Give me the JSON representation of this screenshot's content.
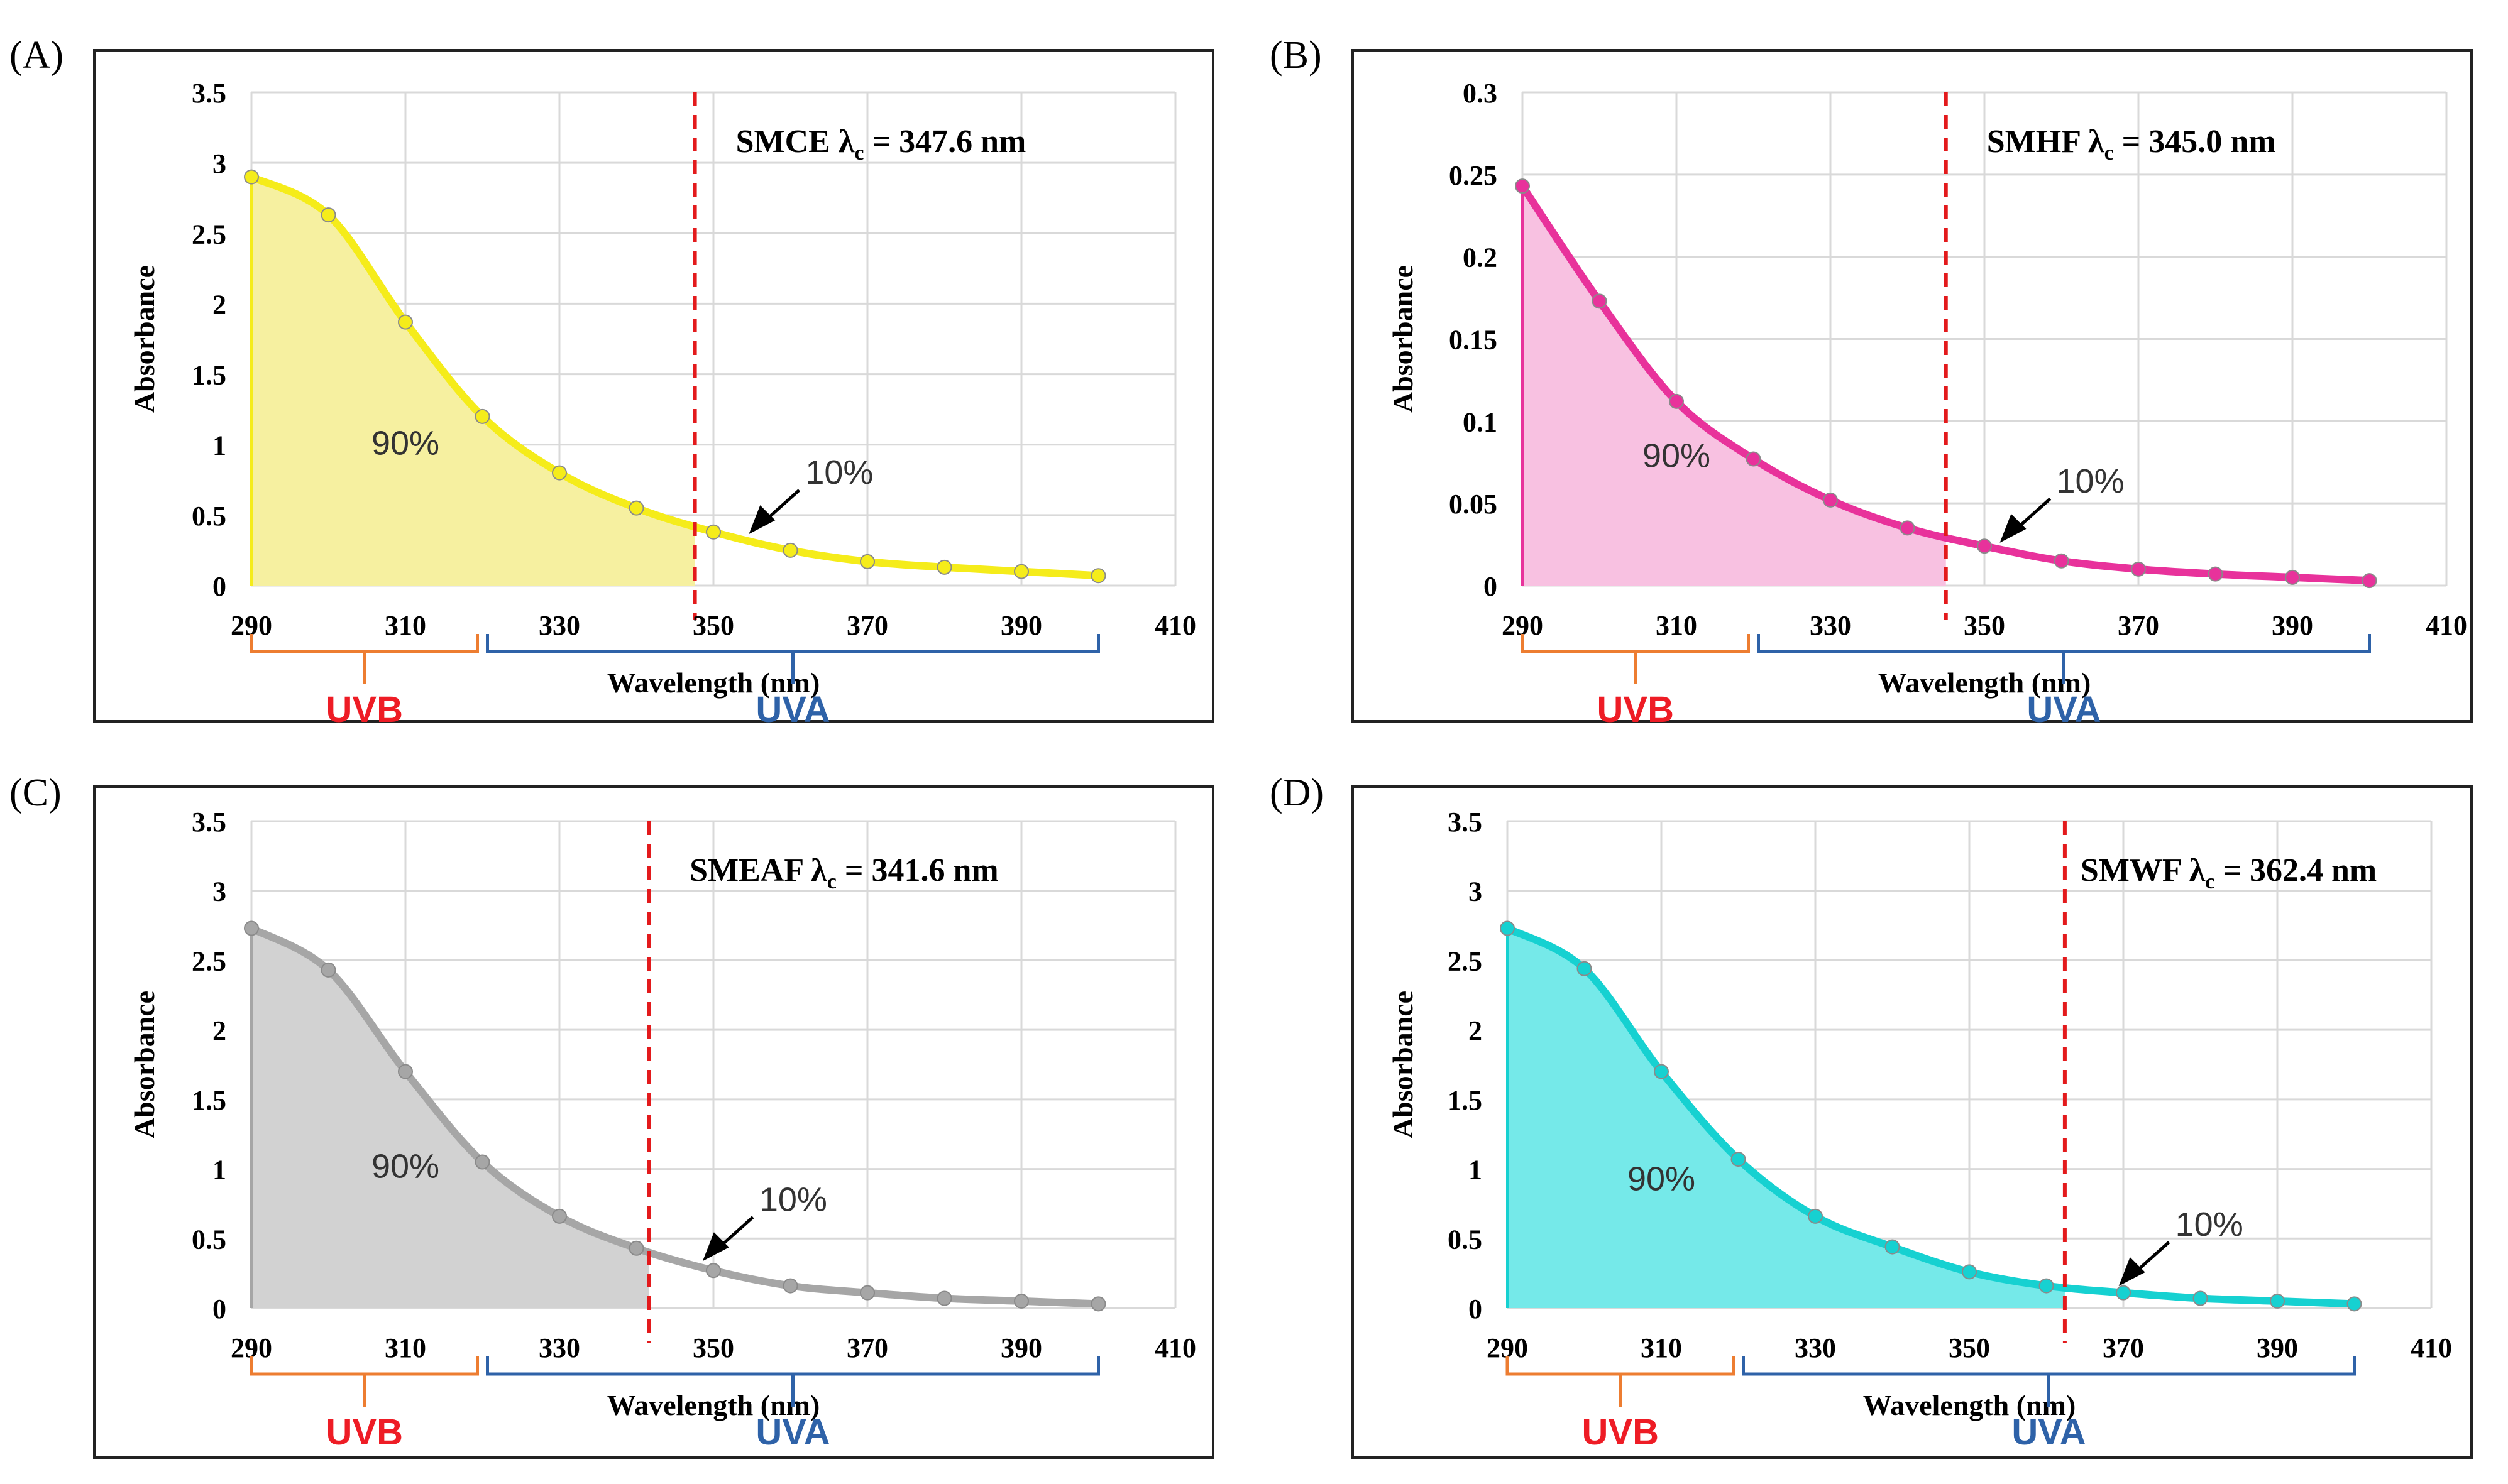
{
  "figure_title": "",
  "shared": {
    "xlabel": "Wavelength (nm)",
    "ylabel": "Absorbance",
    "uvb_label": "UVB",
    "uva_label": "UVA",
    "uvb_range": [
      290,
      320
    ],
    "uva_range": [
      320,
      400
    ],
    "ninety_label": "90%",
    "ten_label": "10%",
    "lambda_symbol": "λ",
    "lambda_sub": "c",
    "lambda_eq": "=",
    "colors": {
      "uvb": "#ed7d31",
      "uva": "#2e62a8",
      "uvb_text": "#ee1c25",
      "uva_text": "#2e62a8",
      "cutoff": "#e31a1c",
      "grid": "#d9d9d9"
    }
  },
  "chart_data": [
    {
      "panel": "(A)",
      "type": "area",
      "sample": "SMCE",
      "lambda_c": 347.6,
      "lambda_value": "347.6 nm",
      "color": "#f5ec1a",
      "fill": "#f6f0a0",
      "xlim": [
        290,
        410
      ],
      "ylim": [
        0,
        3.5
      ],
      "xticks": [
        "290",
        "310",
        "330",
        "350",
        "370",
        "390",
        "410"
      ],
      "yticks": [
        "0",
        "0.5",
        "1",
        "1.5",
        "2",
        "2.5",
        "3",
        "3.5"
      ],
      "x": [
        290,
        300,
        310,
        320,
        330,
        340,
        350,
        360,
        370,
        380,
        390,
        400
      ],
      "y": [
        2.9,
        2.63,
        1.87,
        1.2,
        0.8,
        0.55,
        0.38,
        0.25,
        0.17,
        0.13,
        0.1,
        0.07
      ]
    },
    {
      "panel": "(B)",
      "type": "area",
      "sample": "SMHF",
      "lambda_c": 345.0,
      "lambda_value": "345.0 nm",
      "color": "#e8329b",
      "fill": "#f8c1e1",
      "xlim": [
        290,
        410
      ],
      "ylim": [
        0,
        0.3
      ],
      "xticks": [
        "290",
        "310",
        "330",
        "350",
        "370",
        "390",
        "410"
      ],
      "yticks": [
        "0",
        "0.05",
        "0.1",
        "0.15",
        "0.2",
        "0.25",
        "0.3"
      ],
      "x": [
        290,
        300,
        310,
        320,
        330,
        340,
        350,
        360,
        370,
        380,
        390,
        400
      ],
      "y": [
        0.243,
        0.173,
        0.112,
        0.077,
        0.052,
        0.035,
        0.024,
        0.015,
        0.01,
        0.007,
        0.005,
        0.003
      ]
    },
    {
      "panel": "(C)",
      "type": "area",
      "sample": "SMEAF",
      "lambda_c": 341.6,
      "lambda_value": "341.6 nm",
      "color": "#a6a6a6",
      "fill": "#d2d2d2",
      "xlim": [
        290,
        410
      ],
      "ylim": [
        0,
        3.5
      ],
      "xticks": [
        "290",
        "310",
        "330",
        "350",
        "370",
        "390",
        "410"
      ],
      "yticks": [
        "0",
        "0.5",
        "1",
        "1.5",
        "2",
        "2.5",
        "3",
        "3.5"
      ],
      "x": [
        290,
        300,
        310,
        320,
        330,
        340,
        350,
        360,
        370,
        380,
        390,
        400
      ],
      "y": [
        2.73,
        2.43,
        1.7,
        1.05,
        0.66,
        0.43,
        0.27,
        0.16,
        0.11,
        0.07,
        0.05,
        0.03
      ]
    },
    {
      "panel": "(D)",
      "type": "area",
      "sample": "SMWF",
      "lambda_c": 362.4,
      "lambda_value": "362.4 nm",
      "color": "#16d1d1",
      "fill": "#75e9e9",
      "xlim": [
        290,
        410
      ],
      "ylim": [
        0,
        3.5
      ],
      "xticks": [
        "290",
        "310",
        "330",
        "350",
        "370",
        "390",
        "410"
      ],
      "yticks": [
        "0",
        "0.5",
        "1",
        "1.5",
        "2",
        "2.5",
        "3",
        "3.5"
      ],
      "x": [
        290,
        300,
        310,
        320,
        330,
        340,
        350,
        360,
        370,
        380,
        390,
        400
      ],
      "y": [
        2.73,
        2.44,
        1.7,
        1.07,
        0.66,
        0.44,
        0.26,
        0.16,
        0.11,
        0.07,
        0.05,
        0.03
      ]
    }
  ]
}
